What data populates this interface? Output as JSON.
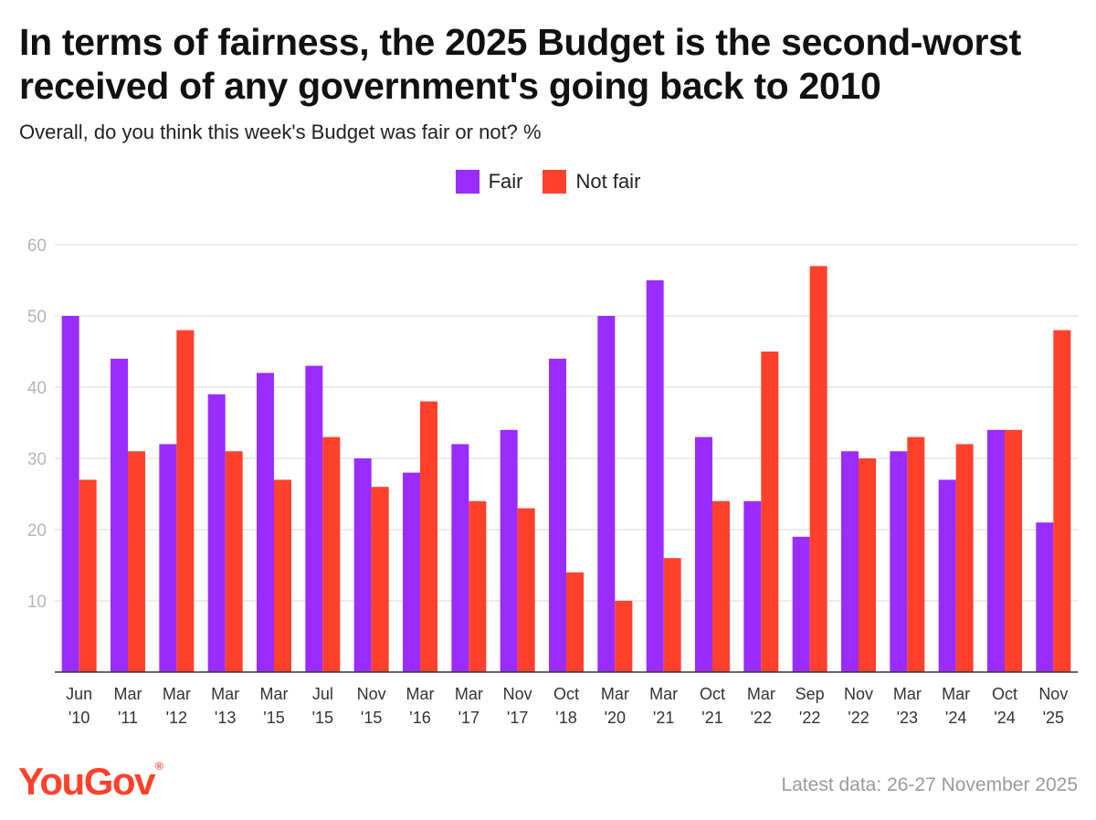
{
  "header": {
    "title": "In terms of fairness, the 2025 Budget is the second-worst received of any government's going back to 2010",
    "subtitle": "Overall, do you think this week's Budget was fair or not? %"
  },
  "legend": {
    "fair_label": "Fair",
    "not_fair_label": "Not fair"
  },
  "footer": {
    "brand": "YouGov",
    "note": "Latest data: 26-27 November 2025"
  },
  "colors": {
    "fair": "#9a2cff",
    "not_fair": "#ff412c",
    "grid": "#e6e6e6",
    "baseline": "#333333"
  },
  "chart_data": {
    "type": "bar",
    "title": "In terms of fairness, the 2025 Budget is the second-worst received of any government's going back to 2010",
    "subtitle": "Overall, do you think this week's Budget was fair or not? %",
    "xlabel": "",
    "ylabel": "",
    "ylim": [
      0,
      60
    ],
    "yticks": [
      10,
      20,
      30,
      40,
      50,
      60
    ],
    "grid": true,
    "legend_position": "top-center",
    "categories": [
      [
        "Jun",
        "'10"
      ],
      [
        "Mar",
        "'11"
      ],
      [
        "Mar",
        "'12"
      ],
      [
        "Mar",
        "'13"
      ],
      [
        "Mar",
        "'15"
      ],
      [
        "Jul",
        "'15"
      ],
      [
        "Nov",
        "'15"
      ],
      [
        "Mar",
        "'16"
      ],
      [
        "Mar",
        "'17"
      ],
      [
        "Nov",
        "'17"
      ],
      [
        "Oct",
        "'18"
      ],
      [
        "Mar",
        "'20"
      ],
      [
        "Mar",
        "'21"
      ],
      [
        "Oct",
        "'21"
      ],
      [
        "Mar",
        "'22"
      ],
      [
        "Sep",
        "'22"
      ],
      [
        "Nov",
        "'22"
      ],
      [
        "Mar",
        "'23"
      ],
      [
        "Mar",
        "'24"
      ],
      [
        "Oct",
        "'24"
      ],
      [
        "Nov",
        "'25"
      ]
    ],
    "series": [
      {
        "name": "Fair",
        "values": [
          50,
          44,
          32,
          39,
          42,
          43,
          30,
          28,
          32,
          34,
          44,
          50,
          55,
          33,
          24,
          19,
          31,
          31,
          27,
          34,
          21
        ]
      },
      {
        "name": "Not fair",
        "values": [
          27,
          31,
          48,
          31,
          27,
          33,
          26,
          38,
          24,
          23,
          14,
          10,
          16,
          24,
          45,
          57,
          30,
          33,
          32,
          34,
          48
        ]
      }
    ]
  }
}
